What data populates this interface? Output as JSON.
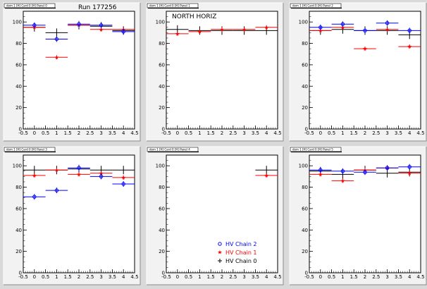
{
  "run_label": "Run 177256",
  "colors": {
    "chain2": "#0000ff",
    "chain1": "#ff0000",
    "chain0": "#000000"
  },
  "legend": [
    {
      "key": "chain2",
      "label": "HV Chain 2",
      "marker": "circle"
    },
    {
      "key": "chain1",
      "label": "HV Chain 1",
      "marker": "star"
    },
    {
      "key": "chain0",
      "label": "HV Chain 0",
      "marker": "cross"
    }
  ],
  "chart_data": [
    {
      "type": "scatter",
      "title": "",
      "pad_title": "dom 1 [H] Card 0 [H] Panel 0",
      "xlim": [
        -0.5,
        4.5
      ],
      "ylim": [
        0,
        110
      ],
      "xticks": [
        "-0.5",
        "0",
        "0.5",
        "1",
        "1.5",
        "2",
        "2.5",
        "3",
        "3.5",
        "4",
        "4.5"
      ],
      "yticks": [
        "0",
        "20",
        "40",
        "60",
        "80",
        "100"
      ],
      "series": [
        {
          "key": "chain0",
          "x": [
            0,
            1,
            2,
            3,
            4
          ],
          "y": [
            95,
            90,
            97,
            96,
            92
          ]
        },
        {
          "key": "chain1",
          "x": [
            0,
            1,
            2,
            3,
            4
          ],
          "y": [
            95,
            67,
            97,
            93,
            93
          ]
        },
        {
          "key": "chain2",
          "x": [
            0,
            1,
            2,
            3,
            4
          ],
          "y": [
            97,
            84,
            98,
            97,
            91
          ]
        }
      ]
    },
    {
      "type": "scatter",
      "title": "NORTH HORIZ",
      "pad_title": "dom 1 [H] Card 0 [H] Panel 1",
      "xlim": [
        -0.5,
        4.5
      ],
      "ylim": [
        0,
        110
      ],
      "xticks": [
        "-0.5",
        "0",
        "0.5",
        "1",
        "1.5",
        "2",
        "2.5",
        "3",
        "3.5",
        "4",
        "4.5"
      ],
      "yticks": [
        "0",
        "20",
        "40",
        "60",
        "80",
        "100"
      ],
      "series": [
        {
          "key": "chain0",
          "x": [
            0,
            1,
            2,
            3,
            4
          ],
          "y": [
            93,
            92,
            92,
            92,
            92
          ]
        },
        {
          "key": "chain1",
          "x": [
            0,
            1,
            2,
            3,
            4
          ],
          "y": [
            89,
            91,
            93,
            93,
            95
          ]
        }
      ]
    },
    {
      "type": "scatter",
      "title": "",
      "pad_title": "dom 1 [H] Card 0 [H] Panel 2",
      "xlim": [
        -0.5,
        4.5
      ],
      "ylim": [
        0,
        110
      ],
      "xticks": [
        "-0.5",
        "0",
        "0.5",
        "1",
        "1.5",
        "2",
        "2.5",
        "3",
        "3.5",
        "4",
        "4.5"
      ],
      "yticks": [
        "0",
        "20",
        "40",
        "60",
        "80",
        "100"
      ],
      "series": [
        {
          "key": "chain0",
          "x": [
            0,
            1,
            2,
            3,
            4
          ],
          "y": [
            92,
            93,
            92,
            92,
            88
          ]
        },
        {
          "key": "chain1",
          "x": [
            0,
            1,
            2,
            3,
            4
          ],
          "y": [
            92,
            95,
            75,
            93,
            77
          ]
        },
        {
          "key": "chain2",
          "x": [
            0,
            1,
            2,
            3,
            4
          ],
          "y": [
            95,
            98,
            92,
            99,
            92
          ]
        }
      ]
    },
    {
      "type": "scatter",
      "title": "",
      "pad_title": "dom 1 [H] Card 0 [H] Panel 3",
      "xlim": [
        -0.5,
        4.5
      ],
      "ylim": [
        0,
        110
      ],
      "xticks": [
        "-0.5",
        "0",
        "0.5",
        "1",
        "1.5",
        "2",
        "2.5",
        "3",
        "3.5",
        "4",
        "4.5"
      ],
      "yticks": [
        "0",
        "20",
        "40",
        "60",
        "80",
        "100"
      ],
      "series": [
        {
          "key": "chain0",
          "x": [
            0,
            1,
            2,
            3,
            4
          ],
          "y": [
            96,
            96,
            97,
            96,
            96
          ]
        },
        {
          "key": "chain1",
          "x": [
            0,
            1,
            2,
            3,
            4
          ],
          "y": [
            91,
            96,
            92,
            93,
            89
          ]
        },
        {
          "key": "chain2",
          "x": [
            0,
            1,
            2,
            3,
            4
          ],
          "y": [
            71,
            77,
            98,
            90,
            83
          ]
        }
      ]
    },
    {
      "type": "scatter",
      "title": "",
      "pad_title": "dom 1 [H] Card 0 [H] Panel 4",
      "xlim": [
        -0.5,
        4.5
      ],
      "ylim": [
        0,
        110
      ],
      "xticks": [
        "-0.5",
        "0",
        "0.5",
        "1",
        "1.5",
        "2",
        "2.5",
        "3",
        "3.5",
        "4",
        "4.5"
      ],
      "yticks": [
        "0",
        "20",
        "40",
        "60",
        "80",
        "100"
      ],
      "has_legend": true,
      "series": [
        {
          "key": "chain0",
          "x": [
            4
          ],
          "y": [
            96
          ]
        },
        {
          "key": "chain1",
          "x": [
            4
          ],
          "y": [
            91
          ]
        }
      ]
    },
    {
      "type": "scatter",
      "title": "",
      "pad_title": "dom 1 [H] Card 0 [H] Panel 5",
      "xlim": [
        -0.5,
        4.5
      ],
      "ylim": [
        0,
        110
      ],
      "xticks": [
        "-0.5",
        "0",
        "0.5",
        "1",
        "1.5",
        "2",
        "2.5",
        "3",
        "3.5",
        "4",
        "4.5"
      ],
      "yticks": [
        "0",
        "20",
        "40",
        "60",
        "80",
        "100"
      ],
      "series": [
        {
          "key": "chain0",
          "x": [
            0,
            1,
            2,
            3,
            4
          ],
          "y": [
            95,
            92,
            96,
            93,
            94
          ]
        },
        {
          "key": "chain1",
          "x": [
            0,
            1,
            2,
            3,
            4
          ],
          "y": [
            92,
            86,
            96,
            98,
            93
          ]
        },
        {
          "key": "chain2",
          "x": [
            0,
            1,
            2,
            3,
            4
          ],
          "y": [
            96,
            95,
            94,
            98,
            99
          ]
        }
      ]
    }
  ]
}
